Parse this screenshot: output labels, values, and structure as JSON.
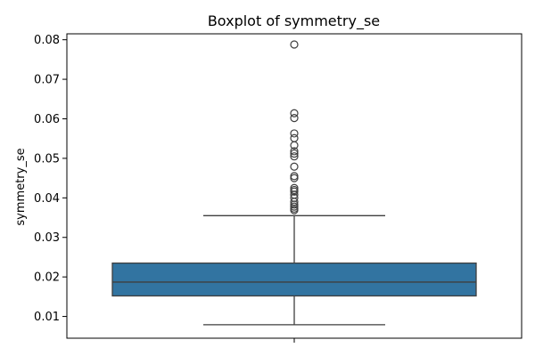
{
  "chart_data": {
    "type": "box",
    "title": "Boxplot of symmetry_se",
    "xlabel": "",
    "ylabel": "symmetry_se",
    "ylim": [
      0.0045,
      0.0815
    ],
    "yticks": [
      0.01,
      0.02,
      0.03,
      0.04,
      0.05,
      0.06,
      0.07,
      0.08
    ],
    "ytick_labels": [
      "0.01",
      "0.02",
      "0.03",
      "0.04",
      "0.05",
      "0.06",
      "0.07",
      "0.08"
    ],
    "box": {
      "whisker_low": 0.0079,
      "q1": 0.0152,
      "median": 0.0187,
      "q3": 0.0235,
      "whisker_high": 0.0355
    },
    "outliers": [
      0.0788,
      0.0614,
      0.0602,
      0.0563,
      0.0551,
      0.0533,
      0.0518,
      0.0512,
      0.0505,
      0.0479,
      0.0455,
      0.045,
      0.0425,
      0.042,
      0.0416,
      0.0408,
      0.04,
      0.039,
      0.0383,
      0.0378,
      0.0373,
      0.0369
    ],
    "grid": false,
    "colors": {
      "box_fill": "#3274a1",
      "line": "#3f3f3f",
      "outlier_edge": "#3f3f3f",
      "axis": "#000000"
    }
  }
}
